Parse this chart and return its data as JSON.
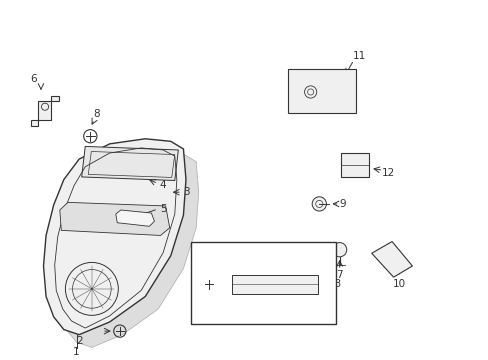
{
  "bg_color": "#ffffff",
  "line_color": "#333333",
  "fig_width": 4.89,
  "fig_height": 3.6,
  "dpi": 100
}
